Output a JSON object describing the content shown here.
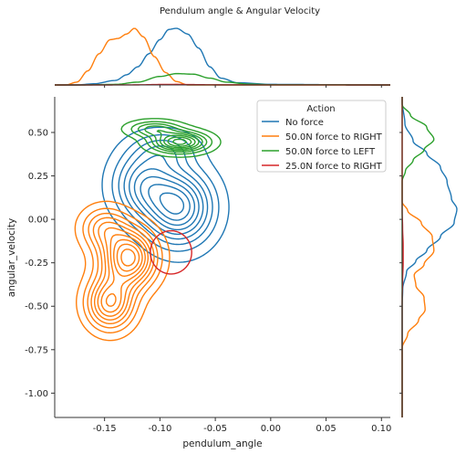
{
  "chart_data": {
    "type": "kde-joint",
    "title": "Pendulum angle & Angular Velocity",
    "xlabel": "pendulum_angle",
    "ylabel": "angular_velocity",
    "xlim": [
      -0.195,
      0.108
    ],
    "ylim": [
      -1.14,
      0.705
    ],
    "x_ticks": [
      "-0.15",
      "-0.10",
      "-0.05",
      "0.00",
      "0.05",
      "0.10"
    ],
    "x_tick_values": [
      -0.15,
      -0.1,
      -0.05,
      0.0,
      0.05,
      0.1
    ],
    "y_ticks": [
      "0.50",
      "0.25",
      "0.00",
      "-0.25",
      "-0.50",
      "-0.75",
      "-1.00"
    ],
    "y_tick_values": [
      0.5,
      0.25,
      0.0,
      -0.25,
      -0.5,
      -0.75,
      -1.0
    ],
    "grid": false,
    "legend": {
      "title": "Action",
      "placement": "top-right"
    },
    "series": [
      {
        "name": "No force",
        "color": "#1f77b4",
        "levels": 9,
        "components": [
          {
            "cx": -0.083,
            "cy": 0.07,
            "sx": 0.02,
            "sy": 0.14,
            "w": 0.55
          },
          {
            "cx": -0.115,
            "cy": 0.2,
            "sx": 0.018,
            "sy": 0.13,
            "w": 0.35
          },
          {
            "cx": -0.095,
            "cy": 0.4,
            "sx": 0.018,
            "sy": 0.07,
            "w": 0.18
          }
        ],
        "x_marginal": [
          [
            -0.175,
            0.0
          ],
          [
            -0.16,
            0.02
          ],
          [
            -0.14,
            0.08
          ],
          [
            -0.13,
            0.18
          ],
          [
            -0.12,
            0.32
          ],
          [
            -0.11,
            0.55
          ],
          [
            -0.1,
            0.8
          ],
          [
            -0.092,
            0.98
          ],
          [
            -0.085,
            1.0
          ],
          [
            -0.075,
            0.9
          ],
          [
            -0.065,
            0.65
          ],
          [
            -0.055,
            0.32
          ],
          [
            -0.045,
            0.12
          ],
          [
            -0.03,
            0.04
          ],
          [
            0.0,
            0.01
          ],
          [
            0.1,
            0.0
          ]
        ],
        "y_marginal": [
          [
            0.68,
            0.0
          ],
          [
            0.55,
            0.05
          ],
          [
            0.45,
            0.2
          ],
          [
            0.38,
            0.45
          ],
          [
            0.3,
            0.7
          ],
          [
            0.22,
            0.82
          ],
          [
            0.12,
            0.9
          ],
          [
            0.06,
            1.0
          ],
          [
            -0.02,
            0.95
          ],
          [
            -0.1,
            0.7
          ],
          [
            -0.18,
            0.45
          ],
          [
            -0.24,
            0.25
          ],
          [
            -0.3,
            0.08
          ],
          [
            -0.4,
            0.01
          ],
          [
            -0.5,
            0.0
          ]
        ]
      },
      {
        "name": "50.0N force to RIGHT",
        "color": "#ff7f0e",
        "levels": 10,
        "components": [
          {
            "cx": -0.128,
            "cy": -0.22,
            "sx": 0.016,
            "sy": 0.11,
            "w": 0.6
          },
          {
            "cx": -0.145,
            "cy": -0.48,
            "sx": 0.014,
            "sy": 0.1,
            "w": 0.45
          },
          {
            "cx": -0.15,
            "cy": -0.05,
            "sx": 0.014,
            "sy": 0.08,
            "w": 0.25
          }
        ],
        "x_marginal": [
          [
            -0.185,
            0.0
          ],
          [
            -0.175,
            0.05
          ],
          [
            -0.165,
            0.25
          ],
          [
            -0.155,
            0.55
          ],
          [
            -0.145,
            0.8
          ],
          [
            -0.138,
            0.82
          ],
          [
            -0.13,
            0.9
          ],
          [
            -0.123,
            1.0
          ],
          [
            -0.115,
            0.85
          ],
          [
            -0.105,
            0.5
          ],
          [
            -0.095,
            0.22
          ],
          [
            -0.085,
            0.06
          ],
          [
            -0.075,
            0.0
          ],
          [
            0.1,
            0.0
          ]
        ],
        "y_marginal": [
          [
            0.1,
            0.0
          ],
          [
            0.05,
            0.1
          ],
          [
            -0.02,
            0.35
          ],
          [
            -0.1,
            0.55
          ],
          [
            -0.18,
            0.58
          ],
          [
            -0.26,
            0.4
          ],
          [
            -0.32,
            0.22
          ],
          [
            -0.38,
            0.25
          ],
          [
            -0.45,
            0.4
          ],
          [
            -0.52,
            0.42
          ],
          [
            -0.58,
            0.3
          ],
          [
            -0.66,
            0.1
          ],
          [
            -0.74,
            0.0
          ]
        ]
      },
      {
        "name": "50.0N force to LEFT",
        "color": "#2ca02c",
        "levels": 8,
        "components": [
          {
            "cx": -0.082,
            "cy": 0.445,
            "sx": 0.016,
            "sy": 0.038,
            "w": 0.7
          },
          {
            "cx": -0.105,
            "cy": 0.52,
            "sx": 0.015,
            "sy": 0.03,
            "w": 0.35
          },
          {
            "cx": 0.055,
            "cy": 0.008,
            "sx": 0.0012,
            "sy": 0.004,
            "w": 0.0005
          }
        ],
        "x_marginal": [
          [
            -0.17,
            0.0
          ],
          [
            -0.14,
            0.01
          ],
          [
            -0.12,
            0.05
          ],
          [
            -0.1,
            0.15
          ],
          [
            -0.085,
            0.2
          ],
          [
            -0.07,
            0.19
          ],
          [
            -0.055,
            0.12
          ],
          [
            -0.04,
            0.05
          ],
          [
            -0.02,
            0.015
          ],
          [
            0.0,
            0.005
          ],
          [
            0.05,
            0.003
          ],
          [
            0.1,
            0.0
          ]
        ],
        "y_marginal": [
          [
            0.66,
            0.0
          ],
          [
            0.6,
            0.15
          ],
          [
            0.53,
            0.45
          ],
          [
            0.46,
            0.58
          ],
          [
            0.4,
            0.4
          ],
          [
            0.34,
            0.2
          ],
          [
            0.28,
            0.06
          ],
          [
            0.22,
            0.0
          ]
        ]
      },
      {
        "name": "25.0N force to RIGHT",
        "color": "#d62728",
        "levels": 1,
        "components": [
          {
            "cx": -0.09,
            "cy": -0.19,
            "sx": 0.012,
            "sy": 0.08,
            "w": 1.0
          }
        ],
        "x_marginal": [
          [
            -0.15,
            0.0
          ],
          [
            -0.12,
            0.002
          ],
          [
            -0.1,
            0.008
          ],
          [
            -0.085,
            0.01
          ],
          [
            -0.07,
            0.006
          ],
          [
            -0.05,
            0.002
          ],
          [
            0.1,
            0.0
          ]
        ],
        "y_marginal": [
          [
            0.05,
            0.0
          ],
          [
            -0.05,
            0.008
          ],
          [
            -0.15,
            0.018
          ],
          [
            -0.25,
            0.018
          ],
          [
            -0.35,
            0.008
          ],
          [
            -0.45,
            0.0
          ]
        ]
      }
    ]
  }
}
